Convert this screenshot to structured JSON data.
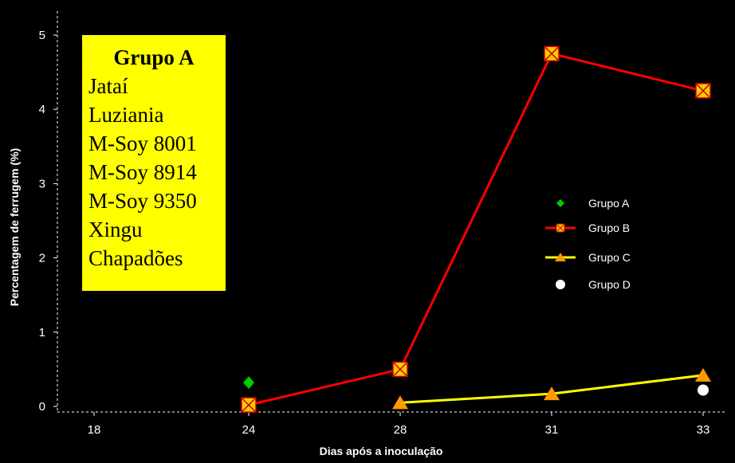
{
  "chart_data": {
    "type": "line",
    "xlabel": "Dias após a inoculação",
    "ylabel": "Percentagem de ferrugem (%)",
    "categories": [
      "18",
      "24",
      "28",
      "31",
      "33"
    ],
    "ylim": [
      0,
      5
    ],
    "yticks": [
      0,
      1,
      2,
      3,
      4,
      5
    ],
    "series": [
      {
        "name": "Grupo A",
        "color": "#00cc00",
        "marker": "diamond",
        "line": false,
        "values": [
          null,
          0.32,
          null,
          null,
          null
        ]
      },
      {
        "name": "Grupo B",
        "color": "#ff0000",
        "marker": "square-x",
        "line": true,
        "values": [
          null,
          0.02,
          0.5,
          4.75,
          4.25
        ]
      },
      {
        "name": "Grupo C",
        "color": "#ffff00",
        "marker": "triangle",
        "line": true,
        "values": [
          null,
          null,
          0.05,
          0.17,
          0.42
        ]
      },
      {
        "name": "Grupo D",
        "color": "#ffffff",
        "marker": "circle",
        "line": false,
        "values": [
          null,
          null,
          null,
          null,
          0.22
        ]
      }
    ],
    "legend_position": "right",
    "annotation": {
      "title": "Grupo A",
      "items": [
        "Jataí",
        "Luziania",
        "M-Soy 8001",
        "M-Soy 8914",
        "M-Soy 9350",
        "Xingu",
        "Chapadões"
      ]
    }
  }
}
